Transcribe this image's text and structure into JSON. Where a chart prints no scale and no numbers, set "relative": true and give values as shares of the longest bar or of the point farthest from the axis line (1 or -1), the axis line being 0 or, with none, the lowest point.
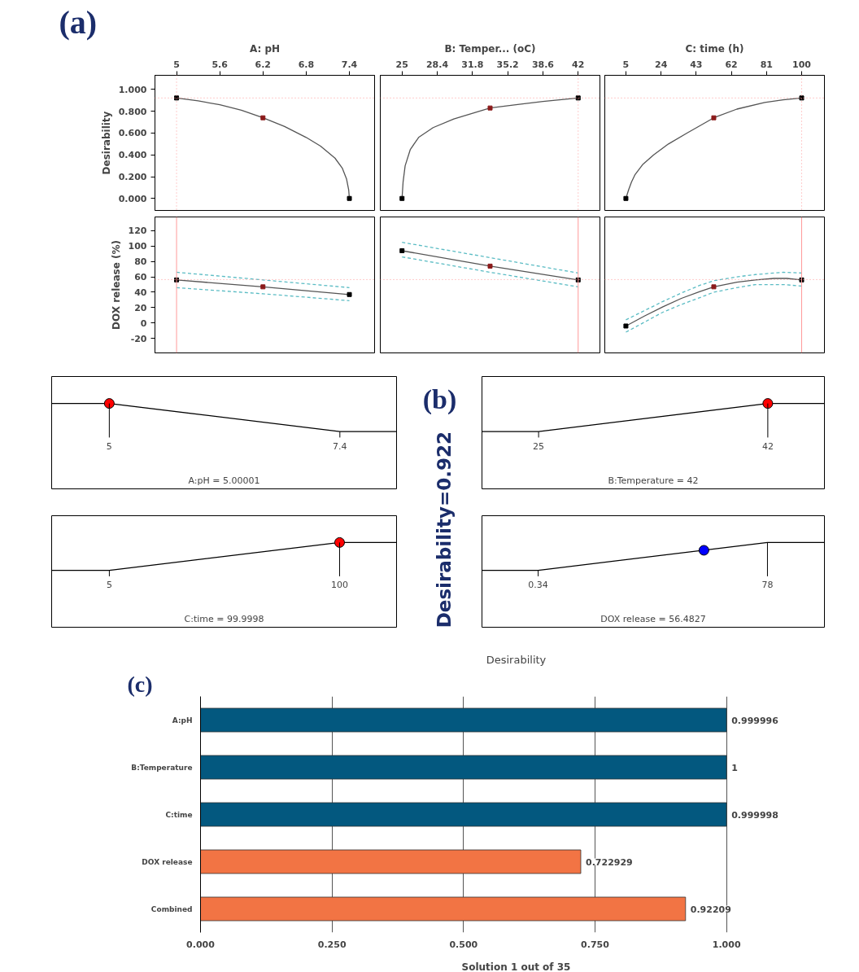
{
  "chart_data": [
    {
      "type": "line",
      "xlabel": "A: pH",
      "ylabel": "Desirability",
      "xlim": [
        4.7,
        7.75
      ],
      "ylim": [
        -0.11,
        1.13
      ],
      "xticks": [
        5,
        5.6,
        6.2,
        6.8,
        7.4
      ],
      "yticks": [
        {
          "value": 0,
          "label": "0.000"
        },
        {
          "value": 0.2,
          "label": "0.200"
        },
        {
          "value": 0.4,
          "label": "0.400"
        },
        {
          "value": 0.6,
          "label": "0.600"
        },
        {
          "value": 0.8,
          "label": "0.800"
        },
        {
          "value": 1,
          "label": "1.000"
        }
      ],
      "annotations": [
        "(a)"
      ],
      "ref_lines": [
        {
          "axis": "x",
          "value": 5,
          "color": "#ff9999",
          "line_style": "dotted"
        },
        {
          "axis": "y",
          "value": 0.922,
          "color": "#ff9999",
          "line_style": "dotted"
        }
      ],
      "series": [
        {
          "type": "line",
          "color": "#555555",
          "x": [
            5,
            5.3,
            5.6,
            5.9,
            6.2,
            6.5,
            6.8,
            7.0,
            7.2,
            7.3,
            7.36,
            7.39,
            7.4
          ],
          "values": [
            0.922,
            0.895,
            0.86,
            0.81,
            0.74,
            0.66,
            0.56,
            0.48,
            0.37,
            0.28,
            0.18,
            0.08,
            0
          ]
        },
        {
          "type": "scatter",
          "marker": "square",
          "colors": [
            "#000000",
            "#8b1a1a",
            "#000000"
          ],
          "x": [
            5,
            6.2,
            7.4
          ],
          "values": [
            0.922,
            0.74,
            0
          ]
        }
      ]
    },
    {
      "type": "line",
      "xlabel": "B: Temper... (oC)",
      "tick_labels": "x",
      "xlim": [
        22.9,
        44.1
      ],
      "ylim": [
        -0.11,
        1.13
      ],
      "xticks": [
        25,
        28.4,
        31.8,
        35.2,
        38.6,
        42
      ],
      "ref_lines": [
        {
          "axis": "x",
          "value": 42,
          "color": "#ff9999",
          "line_style": "dotted"
        },
        {
          "axis": "y",
          "value": 0.922,
          "color": "#ff9999",
          "line_style": "dotted"
        }
      ],
      "series": [
        {
          "type": "line",
          "color": "#555555",
          "x": [
            25,
            25.1,
            25.3,
            25.8,
            26.6,
            28,
            30,
            33.5,
            36,
            38.6,
            42
          ],
          "values": [
            0,
            0.15,
            0.3,
            0.45,
            0.56,
            0.65,
            0.73,
            0.83,
            0.86,
            0.89,
            0.922
          ]
        },
        {
          "type": "scatter",
          "marker": "square",
          "colors": [
            "#000000",
            "#8b1a1a",
            "#000000"
          ],
          "x": [
            25,
            33.5,
            42
          ],
          "values": [
            0,
            0.83,
            0.922
          ]
        }
      ]
    },
    {
      "type": "line",
      "xlabel": "C: time (h)",
      "tick_labels": "x",
      "xlim": [
        -6.4,
        112.3
      ],
      "ylim": [
        -0.11,
        1.13
      ],
      "xticks": [
        5,
        24,
        43,
        62,
        81,
        100
      ],
      "ref_lines": [
        {
          "axis": "x",
          "value": 100,
          "color": "#ff9999",
          "line_style": "dotted"
        },
        {
          "axis": "y",
          "value": 0.922,
          "color": "#ff9999",
          "line_style": "dotted"
        }
      ],
      "series": [
        {
          "type": "line",
          "color": "#555555",
          "x": [
            5,
            6.5,
            8,
            10,
            14,
            20,
            28,
            38,
            52.5,
            65,
            80,
            90,
            100
          ],
          "values": [
            0,
            0.08,
            0.15,
            0.22,
            0.31,
            0.4,
            0.5,
            0.6,
            0.74,
            0.82,
            0.88,
            0.905,
            0.922
          ]
        },
        {
          "type": "scatter",
          "marker": "square",
          "colors": [
            "#000000",
            "#8b1a1a",
            "#000000"
          ],
          "x": [
            5,
            52.5,
            100
          ],
          "values": [
            0,
            0.74,
            0.922
          ]
        }
      ]
    },
    {
      "type": "line",
      "ylabel": "DOX release (%)",
      "tick_labels": "y",
      "xlim": [
        4.7,
        7.75
      ],
      "ylim": [
        -39,
        138
      ],
      "yticks": [
        -20,
        0,
        20,
        40,
        60,
        80,
        100,
        120
      ],
      "ref_lines": [
        {
          "axis": "x",
          "value": 5,
          "color": "#ff9999",
          "line_style": "solid"
        },
        {
          "axis": "y",
          "value": 56.48,
          "color": "#ff9999",
          "line_style": "dotted"
        }
      ],
      "series": [
        {
          "type": "line",
          "color": "#555555",
          "x": [
            5,
            6.2,
            7.4
          ],
          "values": [
            56,
            47,
            37
          ]
        },
        {
          "type": "line",
          "color": "#5bbcc4",
          "line_style": "dashed",
          "x": [
            5,
            6.2,
            7.4
          ],
          "values": [
            66,
            56,
            46
          ]
        },
        {
          "type": "line",
          "color": "#5bbcc4",
          "line_style": "dashed",
          "x": [
            5,
            6.2,
            7.4
          ],
          "values": [
            46,
            38,
            29
          ]
        },
        {
          "type": "scatter",
          "marker": "square",
          "colors": [
            "#000000",
            "#8b1a1a",
            "#000000"
          ],
          "x": [
            5,
            6.2,
            7.4
          ],
          "values": [
            56,
            47,
            37
          ]
        }
      ]
    },
    {
      "type": "line",
      "tick_labels": false,
      "xlim": [
        22.9,
        44.1
      ],
      "ylim": [
        -39,
        138
      ],
      "ref_lines": [
        {
          "axis": "x",
          "value": 42,
          "color": "#ff9999",
          "line_style": "solid"
        },
        {
          "axis": "y",
          "value": 56.48,
          "color": "#ff9999",
          "line_style": "dotted"
        }
      ],
      "series": [
        {
          "type": "line",
          "color": "#555555",
          "x": [
            25,
            33.5,
            42
          ],
          "values": [
            94,
            74,
            56
          ]
        },
        {
          "type": "line",
          "color": "#5bbcc4",
          "line_style": "dashed",
          "x": [
            25,
            33.5,
            42
          ],
          "values": [
            105,
            85,
            65
          ]
        },
        {
          "type": "line",
          "color": "#5bbcc4",
          "line_style": "dashed",
          "x": [
            25,
            33.5,
            42
          ],
          "values": [
            86,
            66,
            47
          ]
        },
        {
          "type": "scatter",
          "marker": "square",
          "colors": [
            "#000000",
            "#8b1a1a",
            "#000000"
          ],
          "x": [
            25,
            33.5,
            42
          ],
          "values": [
            94,
            74,
            56
          ]
        }
      ]
    },
    {
      "type": "line",
      "tick_labels": false,
      "xlim": [
        -6.4,
        112.3
      ],
      "ylim": [
        -39,
        138
      ],
      "ref_lines": [
        {
          "axis": "x",
          "value": 100,
          "color": "#ff9999",
          "line_style": "solid"
        },
        {
          "axis": "y",
          "value": 56.48,
          "color": "#ff9999",
          "line_style": "dotted"
        }
      ],
      "series": [
        {
          "type": "line",
          "color": "#555555",
          "x": [
            5,
            15,
            25,
            35,
            45,
            52.5,
            65,
            75,
            85,
            92,
            100
          ],
          "values": [
            -4,
            9,
            21,
            32,
            41,
            47,
            53,
            56,
            58,
            58,
            56
          ]
        },
        {
          "type": "line",
          "color": "#5bbcc4",
          "line_style": "dashed",
          "x": [
            5,
            15,
            25,
            35,
            45,
            52.5,
            65,
            75,
            90,
            100
          ],
          "values": [
            4,
            16,
            28,
            39,
            49,
            55,
            60,
            63,
            66,
            65
          ]
        },
        {
          "type": "line",
          "color": "#5bbcc4",
          "line_style": "dashed",
          "x": [
            5,
            15,
            25,
            35,
            45,
            52.5,
            65,
            75,
            90,
            100
          ],
          "values": [
            -12,
            1,
            14,
            24,
            33,
            40,
            46,
            50,
            50,
            48
          ]
        },
        {
          "type": "scatter",
          "marker": "square",
          "colors": [
            "#000000",
            "#8b1a1a",
            "#000000"
          ],
          "x": [
            5,
            52.5,
            100
          ],
          "values": [
            -4,
            47,
            56
          ]
        }
      ]
    },
    {
      "type": "line",
      "relative": true,
      "xlabel": "A:pH = 5.00001",
      "xlim": [
        4.4,
        7.99
      ],
      "xticks": [
        5,
        7.4
      ],
      "series": [
        {
          "type": "line",
          "color": "#000000",
          "x": [
            4.4,
            5,
            7.4,
            7.99
          ],
          "values": [
            1,
            1,
            0,
            0
          ]
        },
        {
          "type": "scatter",
          "marker": "circle",
          "colors": [
            "#ff0000"
          ],
          "x": [
            5
          ],
          "values": [
            1
          ]
        }
      ]
    },
    {
      "type": "other",
      "annotations": [
        "(b)",
        "Desirability=0.922"
      ]
    },
    {
      "type": "line",
      "relative": true,
      "xlabel": "B:Temperature = 42",
      "xlim": [
        20.8,
        46.2
      ],
      "xticks": [
        25,
        42
      ],
      "series": [
        {
          "type": "line",
          "color": "#000000",
          "x": [
            20.8,
            25,
            42,
            46.2
          ],
          "values": [
            0,
            0,
            1,
            1
          ]
        },
        {
          "type": "scatter",
          "marker": "circle",
          "colors": [
            "#ff0000"
          ],
          "x": [
            42
          ],
          "values": [
            1
          ]
        }
      ]
    },
    {
      "type": "line",
      "relative": true,
      "xlabel": "C:time = 99.9998",
      "xlim": [
        -18.8,
        123.5
      ],
      "xticks": [
        5,
        100
      ],
      "series": [
        {
          "type": "line",
          "color": "#000000",
          "x": [
            -18.8,
            5,
            100,
            123.5
          ],
          "values": [
            0,
            0,
            1,
            1
          ]
        },
        {
          "type": "scatter",
          "marker": "circle",
          "colors": [
            "#ff0000"
          ],
          "x": [
            100
          ],
          "values": [
            1
          ]
        }
      ]
    },
    {
      "type": "line",
      "relative": true,
      "xlabel": "DOX release = 56.4827",
      "xlim": [
        -18.7,
        97.3
      ],
      "xticks": [
        0.34,
        78
      ],
      "series": [
        {
          "type": "line",
          "color": "#000000",
          "x": [
            -18.7,
            0.34,
            78,
            97.3
          ],
          "values": [
            0,
            0,
            1,
            1
          ]
        },
        {
          "type": "scatter",
          "marker": "circle",
          "colors": [
            "#0000ff"
          ],
          "x": [
            56.4827
          ],
          "values": [
            0.72
          ]
        }
      ]
    },
    {
      "type": "bar",
      "orientation": "horizontal",
      "title": "Desirability",
      "xlabel": "Solution 1 out of 35",
      "annotations": [
        "(c)"
      ],
      "grid": "x",
      "data_labels": true,
      "categories": [
        "A:pH",
        "B:Temperature",
        "C:time",
        "DOX release",
        "Combined"
      ],
      "values": [
        0.999996,
        1,
        0.999998,
        0.722929,
        0.92209
      ],
      "colors": [
        "#03587f",
        "#03587f",
        "#03587f",
        "#f27444",
        "#f27444"
      ],
      "xlim": [
        0,
        1
      ],
      "xticks": [
        {
          "value": 0,
          "label": "0.000"
        },
        {
          "value": 0.25,
          "label": "0.250"
        },
        {
          "value": 0.5,
          "label": "0.500"
        },
        {
          "value": 0.75,
          "label": "0.750"
        },
        {
          "value": 1,
          "label": "1.000"
        }
      ]
    }
  ]
}
